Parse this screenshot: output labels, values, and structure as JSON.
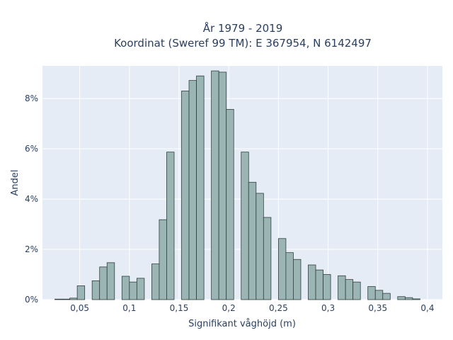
{
  "chart_data": {
    "type": "bar",
    "title_line1": "År 1979 - 2019",
    "title_line2": "Koordinat (Sweref 99 TM): E 367954, N 6142497",
    "xlabel": "Signifikant våghöjd (m)",
    "ylabel": "Andel",
    "xlim": [
      0.0125,
      0.415
    ],
    "ylim": [
      0,
      9.3
    ],
    "bin_width": 0.0075,
    "x_ticks": [
      {
        "value": 0.05,
        "label": "0,05"
      },
      {
        "value": 0.1,
        "label": "0,1"
      },
      {
        "value": 0.15,
        "label": "0,15"
      },
      {
        "value": 0.2,
        "label": "0,2"
      },
      {
        "value": 0.25,
        "label": "0,25"
      },
      {
        "value": 0.3,
        "label": "0,3"
      },
      {
        "value": 0.35,
        "label": "0,35"
      },
      {
        "value": 0.4,
        "label": "0,4"
      }
    ],
    "y_ticks": [
      {
        "value": 0,
        "label": "0%"
      },
      {
        "value": 2,
        "label": "2%"
      },
      {
        "value": 4,
        "label": "4%"
      },
      {
        "value": 6,
        "label": "6%"
      },
      {
        "value": 8,
        "label": "8%"
      }
    ],
    "bins_start": [
      0.025,
      0.0325,
      0.04,
      0.0475,
      0.055,
      0.0625,
      0.07,
      0.0775,
      0.085,
      0.0925,
      0.1,
      0.1075,
      0.115,
      0.1225,
      0.13,
      0.1375,
      0.145,
      0.1525,
      0.16,
      0.1675,
      0.175,
      0.1825,
      0.19,
      0.1975,
      0.205,
      0.2125,
      0.22,
      0.2275,
      0.235,
      0.2425,
      0.25,
      0.2575,
      0.265,
      0.2725,
      0.28,
      0.2875,
      0.295,
      0.3025,
      0.31,
      0.3175,
      0.325,
      0.3325,
      0.34,
      0.3475,
      0.355,
      0.3625,
      0.37,
      0.3775,
      0.385,
      0.3925
    ],
    "values": [
      0.02,
      0.02,
      0.06,
      0.55,
      0.0,
      0.75,
      1.3,
      1.47,
      0.0,
      0.93,
      0.7,
      0.85,
      0.0,
      1.42,
      3.18,
      5.87,
      0.0,
      8.3,
      8.72,
      8.9,
      0.0,
      9.1,
      9.05,
      7.57,
      0.0,
      5.87,
      4.67,
      4.23,
      3.27,
      0.0,
      2.43,
      1.87,
      1.6,
      0.0,
      1.38,
      1.18,
      1.0,
      0.0,
      0.95,
      0.8,
      0.7,
      0.0,
      0.52,
      0.37,
      0.25,
      0.0,
      0.12,
      0.08,
      0.03,
      0.0
    ]
  }
}
